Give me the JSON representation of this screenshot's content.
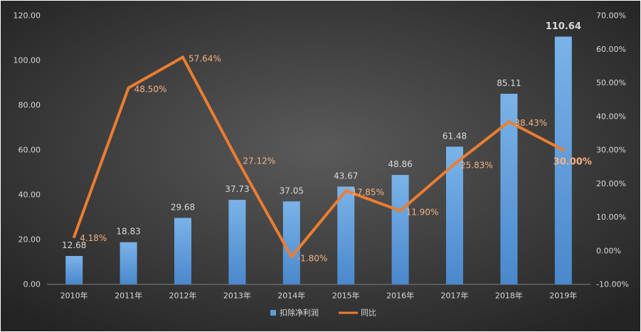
{
  "chart_data": {
    "type": "bar",
    "categories": [
      "2010年",
      "2011年",
      "2012年",
      "2013年",
      "2014年",
      "2015年",
      "2016年",
      "2017年",
      "2018年",
      "2019年"
    ],
    "series": [
      {
        "name": "扣除净利润",
        "type": "bar",
        "axis": "left",
        "values": [
          12.68,
          18.83,
          29.68,
          37.73,
          37.05,
          43.67,
          48.86,
          61.48,
          85.11,
          110.64
        ],
        "labels": [
          "12.68",
          "18.83",
          "29.68",
          "37.73",
          "37.05",
          "43.67",
          "48.86",
          "61.48",
          "85.11",
          "110.64"
        ]
      },
      {
        "name": "同比",
        "type": "line",
        "axis": "right",
        "values": [
          4.18,
          48.5,
          57.64,
          27.12,
          -1.8,
          17.85,
          11.9,
          25.83,
          38.43,
          30.0
        ],
        "labels": [
          "4.18%",
          "48.50%",
          "57.64%",
          "27.12%",
          "-1.80%",
          "17.85%",
          "11.90%",
          "25.83%",
          "38.43%",
          "30.00%"
        ]
      }
    ],
    "y_left": {
      "min": 0,
      "max": 120,
      "tick_labels": [
        "0.00",
        "20.00",
        "40.00",
        "60.00",
        "80.00",
        "100.00",
        "120.00"
      ]
    },
    "y_right": {
      "min": -10,
      "max": 70,
      "tick_labels": [
        "-10.00%",
        "0.00%",
        "10.00%",
        "20.00%",
        "30.00%",
        "40.00%",
        "50.00%",
        "60.00%",
        "70.00%"
      ]
    },
    "grid": false,
    "legend": {
      "position": "bottom"
    },
    "highlight_index": 9,
    "colors": {
      "background_center": "#5a5a5a",
      "background_edge": "#232323",
      "bar": "#5b9bd5",
      "bar_top": "#7ab3e8",
      "bar_bottom": "#4a88cc",
      "line": "#ed7d31",
      "line_label": "#f4b183",
      "bar_label": "#d9d9d9",
      "axis_label": "#d9d9d9",
      "axis_line": "#7f7f7f",
      "highlight": "#ffff00"
    }
  }
}
